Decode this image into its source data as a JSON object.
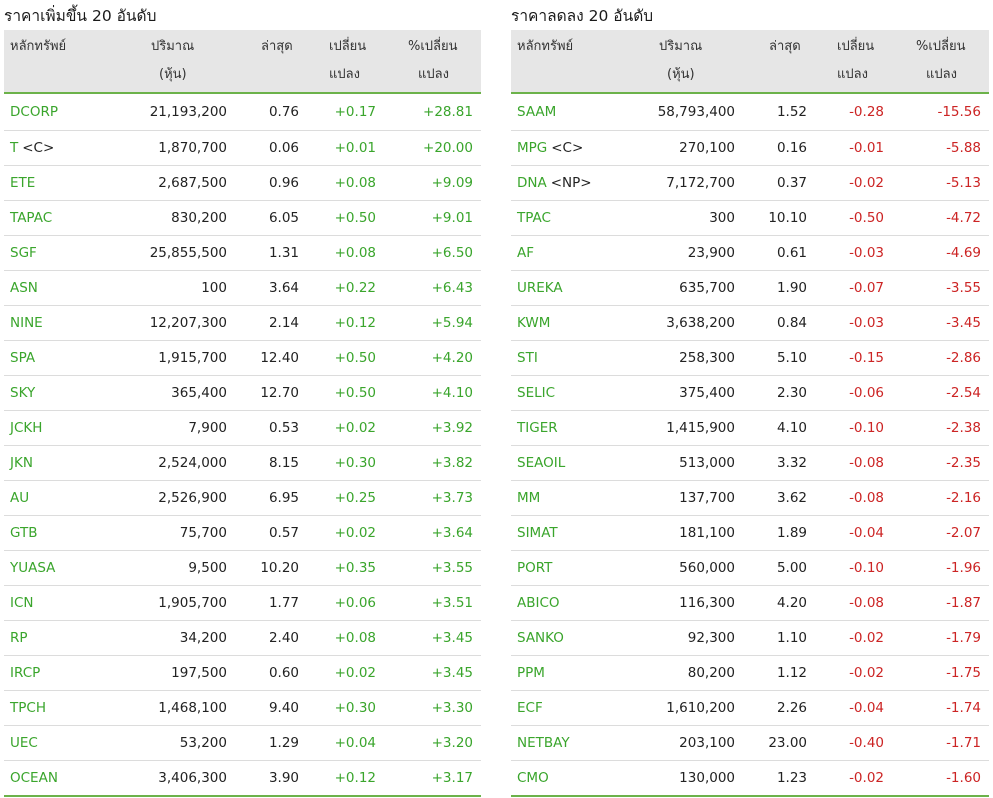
{
  "colors": {
    "gain": "#3aa52c",
    "loss": "#cc2424",
    "header_bg": "#e6e6e6",
    "accent_line": "#6cb24a"
  },
  "columns": {
    "symbol": "หลักทรัพย์",
    "volume": "ปริมาณ",
    "volume_unit": "(หุ้น)",
    "last": "ล่าสุด",
    "change_1": "เปลี่ยน",
    "change_2": "แปลง",
    "pct_1": "%เปลี่ยน",
    "pct_2": "แปลง"
  },
  "gainers": {
    "title": "ราคาเพิ่มขึ้น 20 อันดับ",
    "rows": [
      {
        "symbol": "DCORP",
        "flag": "",
        "volume": "21,193,200",
        "last": "0.76",
        "change": "+0.17",
        "pct": "+28.81"
      },
      {
        "symbol": "T",
        "flag": "<C>",
        "volume": "1,870,700",
        "last": "0.06",
        "change": "+0.01",
        "pct": "+20.00"
      },
      {
        "symbol": "ETE",
        "flag": "",
        "volume": "2,687,500",
        "last": "0.96",
        "change": "+0.08",
        "pct": "+9.09"
      },
      {
        "symbol": "TAPAC",
        "flag": "",
        "volume": "830,200",
        "last": "6.05",
        "change": "+0.50",
        "pct": "+9.01"
      },
      {
        "symbol": "SGF",
        "flag": "",
        "volume": "25,855,500",
        "last": "1.31",
        "change": "+0.08",
        "pct": "+6.50"
      },
      {
        "symbol": "ASN",
        "flag": "",
        "volume": "100",
        "last": "3.64",
        "change": "+0.22",
        "pct": "+6.43"
      },
      {
        "symbol": "NINE",
        "flag": "",
        "volume": "12,207,300",
        "last": "2.14",
        "change": "+0.12",
        "pct": "+5.94"
      },
      {
        "symbol": "SPA",
        "flag": "",
        "volume": "1,915,700",
        "last": "12.40",
        "change": "+0.50",
        "pct": "+4.20"
      },
      {
        "symbol": "SKY",
        "flag": "",
        "volume": "365,400",
        "last": "12.70",
        "change": "+0.50",
        "pct": "+4.10"
      },
      {
        "symbol": "JCKH",
        "flag": "",
        "volume": "7,900",
        "last": "0.53",
        "change": "+0.02",
        "pct": "+3.92"
      },
      {
        "symbol": "JKN",
        "flag": "",
        "volume": "2,524,000",
        "last": "8.15",
        "change": "+0.30",
        "pct": "+3.82"
      },
      {
        "symbol": "AU",
        "flag": "",
        "volume": "2,526,900",
        "last": "6.95",
        "change": "+0.25",
        "pct": "+3.73"
      },
      {
        "symbol": "GTB",
        "flag": "",
        "volume": "75,700",
        "last": "0.57",
        "change": "+0.02",
        "pct": "+3.64"
      },
      {
        "symbol": "YUASA",
        "flag": "",
        "volume": "9,500",
        "last": "10.20",
        "change": "+0.35",
        "pct": "+3.55"
      },
      {
        "symbol": "ICN",
        "flag": "",
        "volume": "1,905,700",
        "last": "1.77",
        "change": "+0.06",
        "pct": "+3.51"
      },
      {
        "symbol": "RP",
        "flag": "",
        "volume": "34,200",
        "last": "2.40",
        "change": "+0.08",
        "pct": "+3.45"
      },
      {
        "symbol": "IRCP",
        "flag": "",
        "volume": "197,500",
        "last": "0.60",
        "change": "+0.02",
        "pct": "+3.45"
      },
      {
        "symbol": "TPCH",
        "flag": "",
        "volume": "1,468,100",
        "last": "9.40",
        "change": "+0.30",
        "pct": "+3.30"
      },
      {
        "symbol": "UEC",
        "flag": "",
        "volume": "53,200",
        "last": "1.29",
        "change": "+0.04",
        "pct": "+3.20"
      },
      {
        "symbol": "OCEAN",
        "flag": "",
        "volume": "3,406,300",
        "last": "3.90",
        "change": "+0.12",
        "pct": "+3.17"
      }
    ]
  },
  "losers": {
    "title": "ราคาลดลง 20 อันดับ",
    "rows": [
      {
        "symbol": "SAAM",
        "flag": "",
        "volume": "58,793,400",
        "last": "1.52",
        "change": "-0.28",
        "pct": "-15.56"
      },
      {
        "symbol": "MPG",
        "flag": "<C>",
        "volume": "270,100",
        "last": "0.16",
        "change": "-0.01",
        "pct": "-5.88"
      },
      {
        "symbol": "DNA",
        "flag": "<NP>",
        "volume": "7,172,700",
        "last": "0.37",
        "change": "-0.02",
        "pct": "-5.13"
      },
      {
        "symbol": "TPAC",
        "flag": "",
        "volume": "300",
        "last": "10.10",
        "change": "-0.50",
        "pct": "-4.72"
      },
      {
        "symbol": "AF",
        "flag": "",
        "volume": "23,900",
        "last": "0.61",
        "change": "-0.03",
        "pct": "-4.69"
      },
      {
        "symbol": "UREKA",
        "flag": "",
        "volume": "635,700",
        "last": "1.90",
        "change": "-0.07",
        "pct": "-3.55"
      },
      {
        "symbol": "KWM",
        "flag": "",
        "volume": "3,638,200",
        "last": "0.84",
        "change": "-0.03",
        "pct": "-3.45"
      },
      {
        "symbol": "STI",
        "flag": "",
        "volume": "258,300",
        "last": "5.10",
        "change": "-0.15",
        "pct": "-2.86"
      },
      {
        "symbol": "SELIC",
        "flag": "",
        "volume": "375,400",
        "last": "2.30",
        "change": "-0.06",
        "pct": "-2.54"
      },
      {
        "symbol": "TIGER",
        "flag": "",
        "volume": "1,415,900",
        "last": "4.10",
        "change": "-0.10",
        "pct": "-2.38"
      },
      {
        "symbol": "SEAOIL",
        "flag": "",
        "volume": "513,000",
        "last": "3.32",
        "change": "-0.08",
        "pct": "-2.35"
      },
      {
        "symbol": "MM",
        "flag": "",
        "volume": "137,700",
        "last": "3.62",
        "change": "-0.08",
        "pct": "-2.16"
      },
      {
        "symbol": "SIMAT",
        "flag": "",
        "volume": "181,100",
        "last": "1.89",
        "change": "-0.04",
        "pct": "-2.07"
      },
      {
        "symbol": "PORT",
        "flag": "",
        "volume": "560,000",
        "last": "5.00",
        "change": "-0.10",
        "pct": "-1.96"
      },
      {
        "symbol": "ABICO",
        "flag": "",
        "volume": "116,300",
        "last": "4.20",
        "change": "-0.08",
        "pct": "-1.87"
      },
      {
        "symbol": "SANKO",
        "flag": "",
        "volume": "92,300",
        "last": "1.10",
        "change": "-0.02",
        "pct": "-1.79"
      },
      {
        "symbol": "PPM",
        "flag": "",
        "volume": "80,200",
        "last": "1.12",
        "change": "-0.02",
        "pct": "-1.75"
      },
      {
        "symbol": "ECF",
        "flag": "",
        "volume": "1,610,200",
        "last": "2.26",
        "change": "-0.04",
        "pct": "-1.74"
      },
      {
        "symbol": "NETBAY",
        "flag": "",
        "volume": "203,100",
        "last": "23.00",
        "change": "-0.40",
        "pct": "-1.71"
      },
      {
        "symbol": "CMO",
        "flag": "",
        "volume": "130,000",
        "last": "1.23",
        "change": "-0.02",
        "pct": "-1.60"
      }
    ]
  }
}
